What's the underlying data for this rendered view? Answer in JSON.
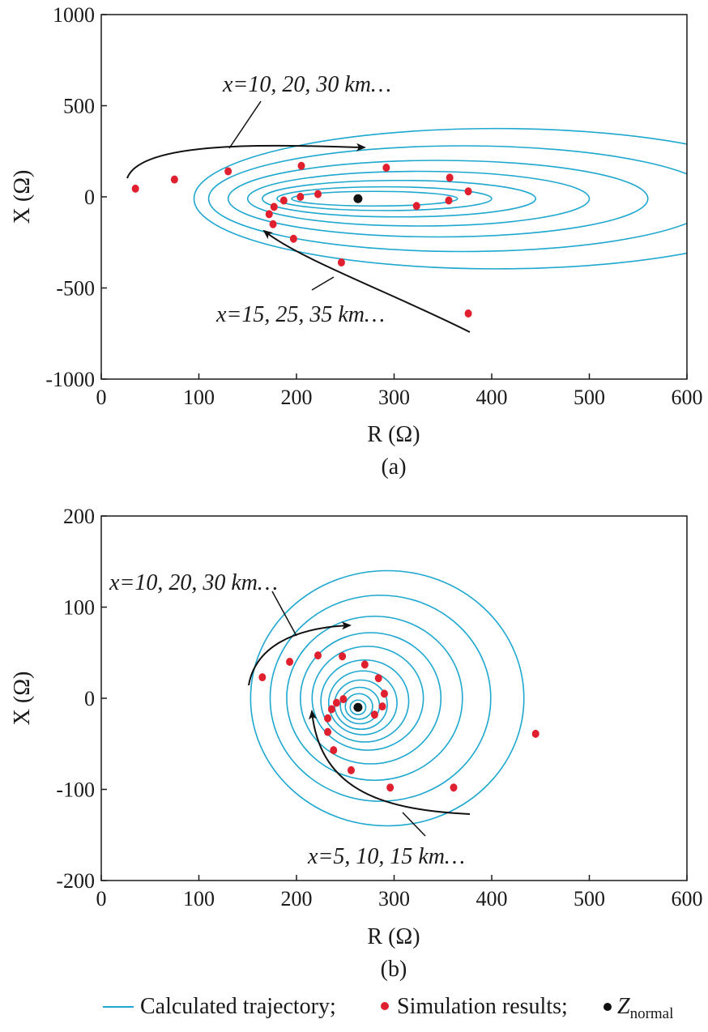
{
  "colors": {
    "trajectory": "#1ea7cf",
    "simulation": "#e0202e",
    "z_normal": "#111111",
    "axis": "#1a1a1a"
  },
  "chart_data": [
    {
      "type": "scatter",
      "caption": "(a)",
      "xlabel": "R (Ω)",
      "ylabel": "X (Ω)",
      "xlim": [
        0,
        600
      ],
      "ylim": [
        -1000,
        1000
      ],
      "xticks": [
        "0",
        "100",
        "200",
        "300",
        "400",
        "500",
        "600"
      ],
      "yticks": [
        "1000",
        "500",
        "0",
        "-500",
        "-1000"
      ],
      "grid": false,
      "annotations": [
        "x=10, 20, 30 km…",
        "x=15, 25, 35 km…"
      ],
      "z_normal": {
        "x": 263,
        "y": -10
      },
      "calculated_trajectory_ellipses": [
        {
          "cx": 280,
          "rx": 85,
          "ry": 40
        },
        {
          "cx": 290,
          "rx": 110,
          "ry": 65
        },
        {
          "cx": 305,
          "rx": 140,
          "ry": 100
        },
        {
          "cx": 325,
          "rx": 175,
          "ry": 150
        },
        {
          "cx": 345,
          "rx": 215,
          "ry": 210
        },
        {
          "cx": 370,
          "rx": 260,
          "ry": 290
        },
        {
          "cx": 405,
          "rx": 310,
          "ry": 385
        }
      ],
      "simulation_results": [
        {
          "x": 35,
          "y": 45
        },
        {
          "x": 75,
          "y": 95
        },
        {
          "x": 130,
          "y": 140
        },
        {
          "x": 205,
          "y": 170
        },
        {
          "x": 292,
          "y": 160
        },
        {
          "x": 357,
          "y": 105
        },
        {
          "x": 376,
          "y": 30
        },
        {
          "x": 222,
          "y": 15
        },
        {
          "x": 204,
          "y": 0
        },
        {
          "x": 187,
          "y": -20
        },
        {
          "x": 177,
          "y": -55
        },
        {
          "x": 172,
          "y": -95
        },
        {
          "x": 176,
          "y": -150
        },
        {
          "x": 197,
          "y": -230
        },
        {
          "x": 246,
          "y": -360
        },
        {
          "x": 376,
          "y": -640
        },
        {
          "x": 323,
          "y": -50
        },
        {
          "x": 356,
          "y": -20
        }
      ]
    },
    {
      "type": "scatter",
      "caption": "(b)",
      "xlabel": "R (Ω)",
      "ylabel": "X (Ω)",
      "xlim": [
        0,
        600
      ],
      "ylim": [
        -200,
        200
      ],
      "xticks": [
        "0",
        "100",
        "200",
        "300",
        "400",
        "500",
        "600"
      ],
      "yticks": [
        "200",
        "100",
        "0",
        "-100",
        "-200"
      ],
      "grid": false,
      "annotations": [
        "x=10, 20, 30 km…",
        "x=5, 10, 15 km…"
      ],
      "z_normal": {
        "x": 263,
        "y": -10
      },
      "calculated_trajectory_circles": [
        {
          "cx": 263,
          "cy": -10,
          "r": 8
        },
        {
          "cx": 264,
          "cy": -9,
          "r": 14
        },
        {
          "cx": 265,
          "cy": -8,
          "r": 20
        },
        {
          "cx": 266,
          "cy": -7,
          "r": 27
        },
        {
          "cx": 268,
          "cy": -5,
          "r": 35
        },
        {
          "cx": 270,
          "cy": -3,
          "r": 45
        },
        {
          "cx": 273,
          "cy": 0,
          "r": 57
        },
        {
          "cx": 276,
          "cy": 0,
          "r": 72
        },
        {
          "cx": 280,
          "cy": 0,
          "r": 90
        },
        {
          "cx": 286,
          "cy": 0,
          "r": 113
        },
        {
          "cx": 293,
          "cy": 0,
          "r": 140
        }
      ],
      "simulation_results": [
        {
          "x": 165,
          "y": 23
        },
        {
          "x": 193,
          "y": 40
        },
        {
          "x": 222,
          "y": 47
        },
        {
          "x": 247,
          "y": 46
        },
        {
          "x": 270,
          "y": 37
        },
        {
          "x": 284,
          "y": 22
        },
        {
          "x": 290,
          "y": 5
        },
        {
          "x": 288,
          "y": -9
        },
        {
          "x": 280,
          "y": -18
        },
        {
          "x": 248,
          "y": -1
        },
        {
          "x": 241,
          "y": -5
        },
        {
          "x": 236,
          "y": -12
        },
        {
          "x": 232,
          "y": -22
        },
        {
          "x": 232,
          "y": -37
        },
        {
          "x": 238,
          "y": -57
        },
        {
          "x": 256,
          "y": -79
        },
        {
          "x": 296,
          "y": -98
        },
        {
          "x": 361,
          "y": -98
        },
        {
          "x": 445,
          "y": -39
        }
      ]
    }
  ],
  "legend": {
    "trajectory_label": "Calculated trajectory;",
    "simulation_label": "Simulation results;",
    "z_label": "Z",
    "z_subscript": "normal"
  }
}
